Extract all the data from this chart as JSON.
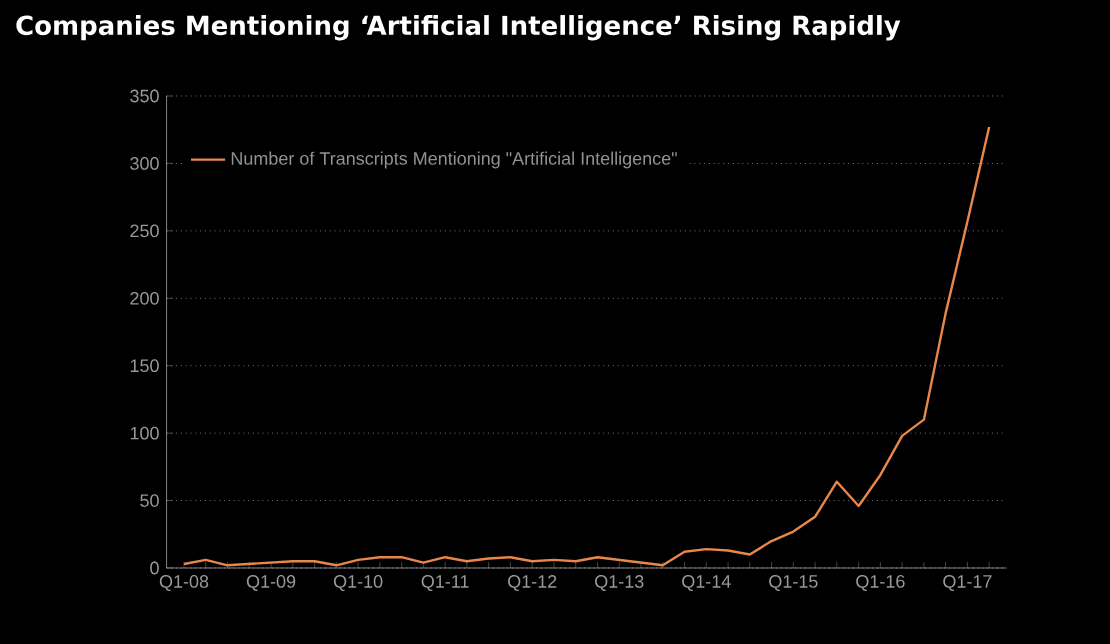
{
  "chart_data": {
    "type": "line",
    "title": "Companies Mentioning ‘Artificial Intelligence’ Rising Rapidly",
    "categories": [
      "Q1-08",
      null,
      null,
      null,
      "Q1-09",
      null,
      null,
      null,
      "Q1-10",
      null,
      null,
      null,
      "Q1-11",
      null,
      null,
      null,
      "Q1-12",
      null,
      null,
      null,
      "Q1-13",
      null,
      null,
      null,
      "Q1-14",
      null,
      null,
      null,
      "Q1-15",
      null,
      null,
      null,
      "Q1-16",
      null,
      null,
      null,
      "Q1-17",
      null
    ],
    "series": [
      {
        "name": "Number of Transcripts Mentioning \"Artificial Intelligence\"",
        "color": "#e8874a",
        "values": [
          3,
          6,
          2,
          3,
          4,
          5,
          5,
          2,
          6,
          8,
          8,
          4,
          8,
          5,
          7,
          8,
          5,
          6,
          5,
          8,
          6,
          4,
          2,
          12,
          14,
          13,
          10,
          20,
          27,
          38,
          64,
          46,
          69,
          98,
          110,
          189,
          257,
          327
        ]
      }
    ],
    "ylim": [
      0,
      350
    ],
    "yticks": [
      0,
      50,
      100,
      150,
      200,
      250,
      300,
      350
    ],
    "grid": "y",
    "legend": "top left",
    "marker": "none",
    "line_style": "solid"
  }
}
